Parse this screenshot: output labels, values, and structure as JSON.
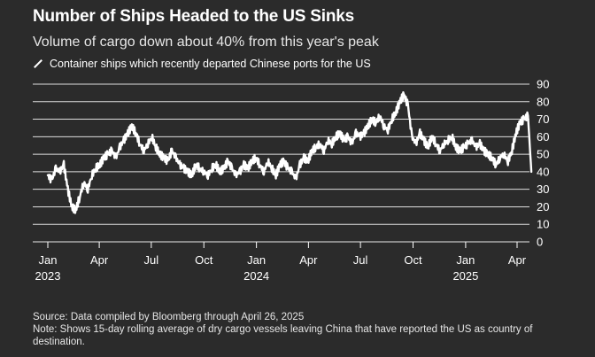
{
  "header": {
    "title": "Number of Ships Headed to the US Sinks",
    "subtitle": "Volume of cargo down about 40% from this year's peak"
  },
  "footer": {
    "source": "Source: Data compiled by Bloomberg through April 26, 2025",
    "note": "Note: Shows 15-day rolling average of dry cargo vessels leaving China that have reported the US as country of destination."
  },
  "colors": {
    "background": "#2b2b2b",
    "line": "#ffffff",
    "grid": "#ffffff",
    "text": "#ffffff"
  },
  "chart_data": {
    "type": "line",
    "title": "Number of Ships Headed to the US Sinks",
    "subtitle": "Volume of cargo down about 40% from this year's peak",
    "xlabel": "",
    "ylabel": "",
    "ylim": [
      0,
      90
    ],
    "yticks": [
      0,
      10,
      20,
      30,
      40,
      50,
      60,
      70,
      80,
      90
    ],
    "y_axis_side": "right",
    "grid": true,
    "x_range": [
      "2023-01-01",
      "2025-04-26"
    ],
    "x_ticks": [
      {
        "date": "2023-01-01",
        "label": "Jan",
        "year": "2023"
      },
      {
        "date": "2023-04-01",
        "label": "Apr",
        "year": ""
      },
      {
        "date": "2023-07-01",
        "label": "Jul",
        "year": ""
      },
      {
        "date": "2023-10-01",
        "label": "Oct",
        "year": ""
      },
      {
        "date": "2024-01-01",
        "label": "Jan",
        "year": "2024"
      },
      {
        "date": "2024-04-01",
        "label": "Apr",
        "year": ""
      },
      {
        "date": "2024-07-01",
        "label": "Jul",
        "year": ""
      },
      {
        "date": "2024-10-01",
        "label": "Oct",
        "year": ""
      },
      {
        "date": "2025-01-01",
        "label": "Jan",
        "year": "2025"
      },
      {
        "date": "2025-04-01",
        "label": "Apr",
        "year": ""
      }
    ],
    "series": [
      {
        "name": "Container ships which recently departed Chinese ports for the US",
        "x": [
          "2023-01-01",
          "2023-01-08",
          "2023-01-15",
          "2023-01-22",
          "2023-01-29",
          "2023-02-05",
          "2023-02-12",
          "2023-02-19",
          "2023-02-26",
          "2023-03-05",
          "2023-03-12",
          "2023-03-19",
          "2023-03-26",
          "2023-04-02",
          "2023-04-09",
          "2023-04-16",
          "2023-04-23",
          "2023-04-30",
          "2023-05-07",
          "2023-05-14",
          "2023-05-21",
          "2023-05-28",
          "2023-06-04",
          "2023-06-11",
          "2023-06-18",
          "2023-06-25",
          "2023-07-02",
          "2023-07-09",
          "2023-07-16",
          "2023-07-23",
          "2023-07-30",
          "2023-08-06",
          "2023-08-13",
          "2023-08-20",
          "2023-08-27",
          "2023-09-03",
          "2023-09-10",
          "2023-09-17",
          "2023-09-24",
          "2023-10-01",
          "2023-10-08",
          "2023-10-15",
          "2023-10-22",
          "2023-10-29",
          "2023-11-05",
          "2023-11-12",
          "2023-11-19",
          "2023-11-26",
          "2023-12-03",
          "2023-12-10",
          "2023-12-17",
          "2023-12-24",
          "2023-12-31",
          "2024-01-07",
          "2024-01-14",
          "2024-01-21",
          "2024-01-28",
          "2024-02-04",
          "2024-02-11",
          "2024-02-18",
          "2024-02-25",
          "2024-03-03",
          "2024-03-10",
          "2024-03-17",
          "2024-03-24",
          "2024-03-31",
          "2024-04-07",
          "2024-04-14",
          "2024-04-21",
          "2024-04-28",
          "2024-05-05",
          "2024-05-12",
          "2024-05-19",
          "2024-05-26",
          "2024-06-02",
          "2024-06-09",
          "2024-06-16",
          "2024-06-23",
          "2024-06-30",
          "2024-07-07",
          "2024-07-14",
          "2024-07-21",
          "2024-07-28",
          "2024-08-04",
          "2024-08-11",
          "2024-08-18",
          "2024-08-25",
          "2024-09-01",
          "2024-09-08",
          "2024-09-15",
          "2024-09-22",
          "2024-09-29",
          "2024-10-06",
          "2024-10-13",
          "2024-10-20",
          "2024-10-27",
          "2024-11-03",
          "2024-11-10",
          "2024-11-17",
          "2024-11-24",
          "2024-12-01",
          "2024-12-08",
          "2024-12-15",
          "2024-12-22",
          "2024-12-29",
          "2025-01-05",
          "2025-01-12",
          "2025-01-19",
          "2025-01-26",
          "2025-02-02",
          "2025-02-09",
          "2025-02-16",
          "2025-02-23",
          "2025-03-02",
          "2025-03-09",
          "2025-03-16",
          "2025-03-23",
          "2025-03-30",
          "2025-04-06",
          "2025-04-13",
          "2025-04-20",
          "2025-04-26"
        ],
        "values": [
          38,
          35,
          42,
          40,
          44,
          30,
          20,
          18,
          26,
          34,
          30,
          38,
          42,
          44,
          48,
          50,
          52,
          48,
          54,
          58,
          62,
          66,
          62,
          56,
          52,
          56,
          60,
          54,
          50,
          48,
          46,
          52,
          48,
          44,
          42,
          40,
          38,
          44,
          42,
          40,
          38,
          42,
          44,
          40,
          42,
          46,
          42,
          38,
          40,
          44,
          42,
          46,
          48,
          44,
          40,
          46,
          42,
          38,
          44,
          46,
          42,
          40,
          36,
          44,
          48,
          46,
          52,
          54,
          56,
          52,
          58,
          56,
          60,
          62,
          58,
          60,
          56,
          62,
          60,
          62,
          66,
          70,
          68,
          72,
          66,
          64,
          70,
          74,
          80,
          84,
          78,
          60,
          56,
          62,
          58,
          54,
          60,
          56,
          52,
          56,
          58,
          60,
          54,
          52,
          54,
          56,
          58,
          54,
          56,
          52,
          50,
          48,
          44,
          48,
          50,
          46,
          52,
          62,
          68,
          70,
          72,
          40
        ]
      }
    ]
  }
}
